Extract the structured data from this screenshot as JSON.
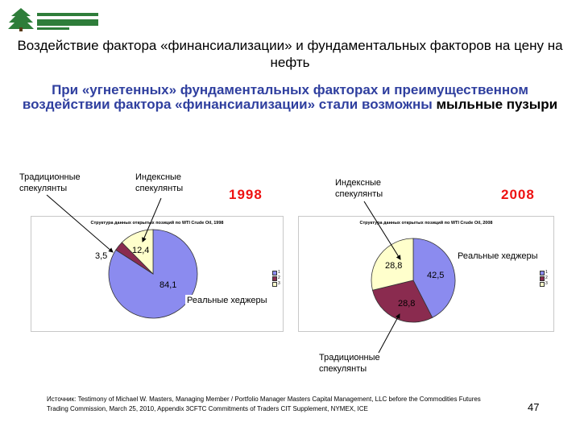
{
  "logo": {
    "line1": "",
    "line2": ""
  },
  "title": "Воздействие фактора «финансиализации» и фундаментальных факторов на цену на нефть",
  "subtitle": {
    "part1": "При «угнетенных» фундаментальных факторах и преимущественном воздействии фактора «финансиализации» стали возможны",
    "part2": "мыльные пузыри"
  },
  "labels": {
    "traditional_1998": "Традиционные спекулянты",
    "index_1998": "Индексные спекулянты",
    "index_2008": "Индексные спекулянты",
    "hedgers_1998": "Реальные хеджеры",
    "hedgers_2008": "Реальные хеджеры",
    "traditional_2008": "Традиционные спекулянты"
  },
  "colors": {
    "slice_1": "#8b8bef",
    "slice_2": "#8a2b4f",
    "slice_3": "#ffffcc",
    "year": "#ee1111",
    "subtitle": "#2f3f9f"
  },
  "chart_data": [
    {
      "type": "pie",
      "year_label": "1998",
      "title": "Структура данных открытых позиций по WTI Crude Oil, 1998",
      "categories": [
        "1",
        "2",
        "3"
      ],
      "values": [
        84.1,
        3.5,
        12.4
      ],
      "value_labels": [
        "84,1",
        "3,5",
        "12,4"
      ],
      "legend": [
        "1",
        "2",
        "3"
      ],
      "legend_position": "right"
    },
    {
      "type": "pie",
      "year_label": "2008",
      "title": "Структура данных открытых позиций по WTI Crude Oil, 2008",
      "categories": [
        "1",
        "2",
        "3"
      ],
      "values": [
        42.5,
        28.8,
        28.8
      ],
      "value_labels": [
        "42,5",
        "28,8",
        "28,8"
      ],
      "legend": [
        "1",
        "2",
        "3"
      ],
      "legend_position": "right"
    }
  ],
  "source": "Источник: Testimony of Michael W. Masters, Managing Member / Portfolio Manager Masters Capital Management, LLC before the Commodities Futures Trading Commission, March 25, 2010, Appendix 3CFTC Commitments of Traders CIT Supplement, NYMEX, ICE",
  "page_number": "47"
}
